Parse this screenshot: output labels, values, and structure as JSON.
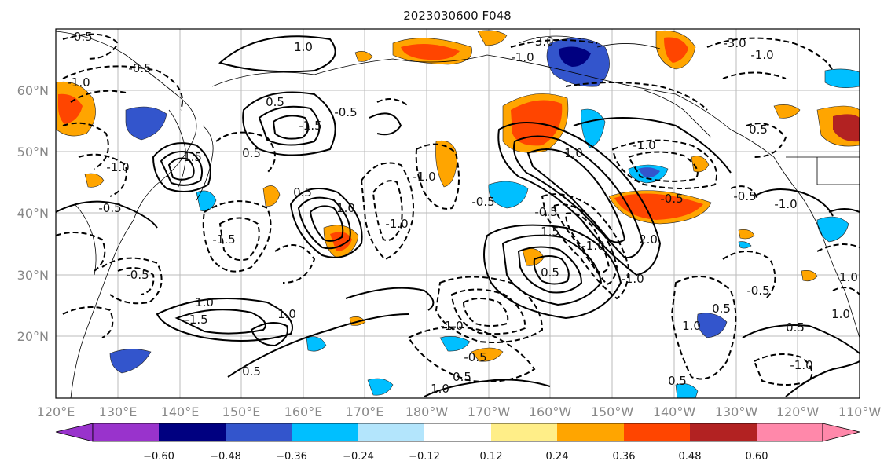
{
  "title": "2023030600 F048",
  "map": {
    "lon_labels": [
      "120°E",
      "130°E",
      "140°E",
      "150°E",
      "160°E",
      "170°E",
      "180°W",
      "170°W",
      "160°W",
      "150°W",
      "140°W",
      "130°W",
      "120°W",
      "110°W"
    ],
    "lat_labels": [
      "60°N",
      "50°N",
      "40°N",
      "30°N",
      "20°N"
    ],
    "contour_labels": [
      "-0.5",
      "1.0",
      "-0.5",
      "-1.0",
      "0.5",
      "-1.5",
      "-0.5",
      "1.5",
      "-0.5",
      "-1.0",
      "-1.5",
      "0.5",
      "1.0",
      "-1.0",
      "0.5",
      "-0.5",
      "-1.0",
      "-0.5",
      "1.5",
      "2.0",
      "-1.0",
      "-1.0",
      "1.0",
      "-1.0",
      "-0.5",
      "1.0",
      "-1.5",
      "0.5",
      "-0.5",
      "0.5",
      "-0.5",
      "0.5",
      "1.0",
      "-1.0",
      "1.0",
      "-3.0",
      "-1.0",
      "0.5",
      "-0.5",
      "-1.0",
      "1.0",
      "0.5",
      "1.0",
      "0.5",
      "-0.5",
      "1.0",
      "-1.0",
      "0.5",
      "-3.0",
      "-1.0"
    ],
    "colors": {
      "neg_extreme": "#9933cc",
      "neg_048": "#000080",
      "neg_036": "#3355cc",
      "neg_024": "#00bfff",
      "neg_012": "#b3e5fc",
      "neutral": "#ffffff",
      "pos_012": "#ffee88",
      "pos_024": "#ffa500",
      "pos_036": "#ff4500",
      "pos_048": "#b22222",
      "pos_extreme": "#ff88aa"
    }
  },
  "colorbar": {
    "ticks": [
      "−0.60",
      "−0.48",
      "−0.36",
      "−0.24",
      "−0.12",
      "0.12",
      "0.24",
      "0.36",
      "0.48",
      "0.60"
    ]
  }
}
